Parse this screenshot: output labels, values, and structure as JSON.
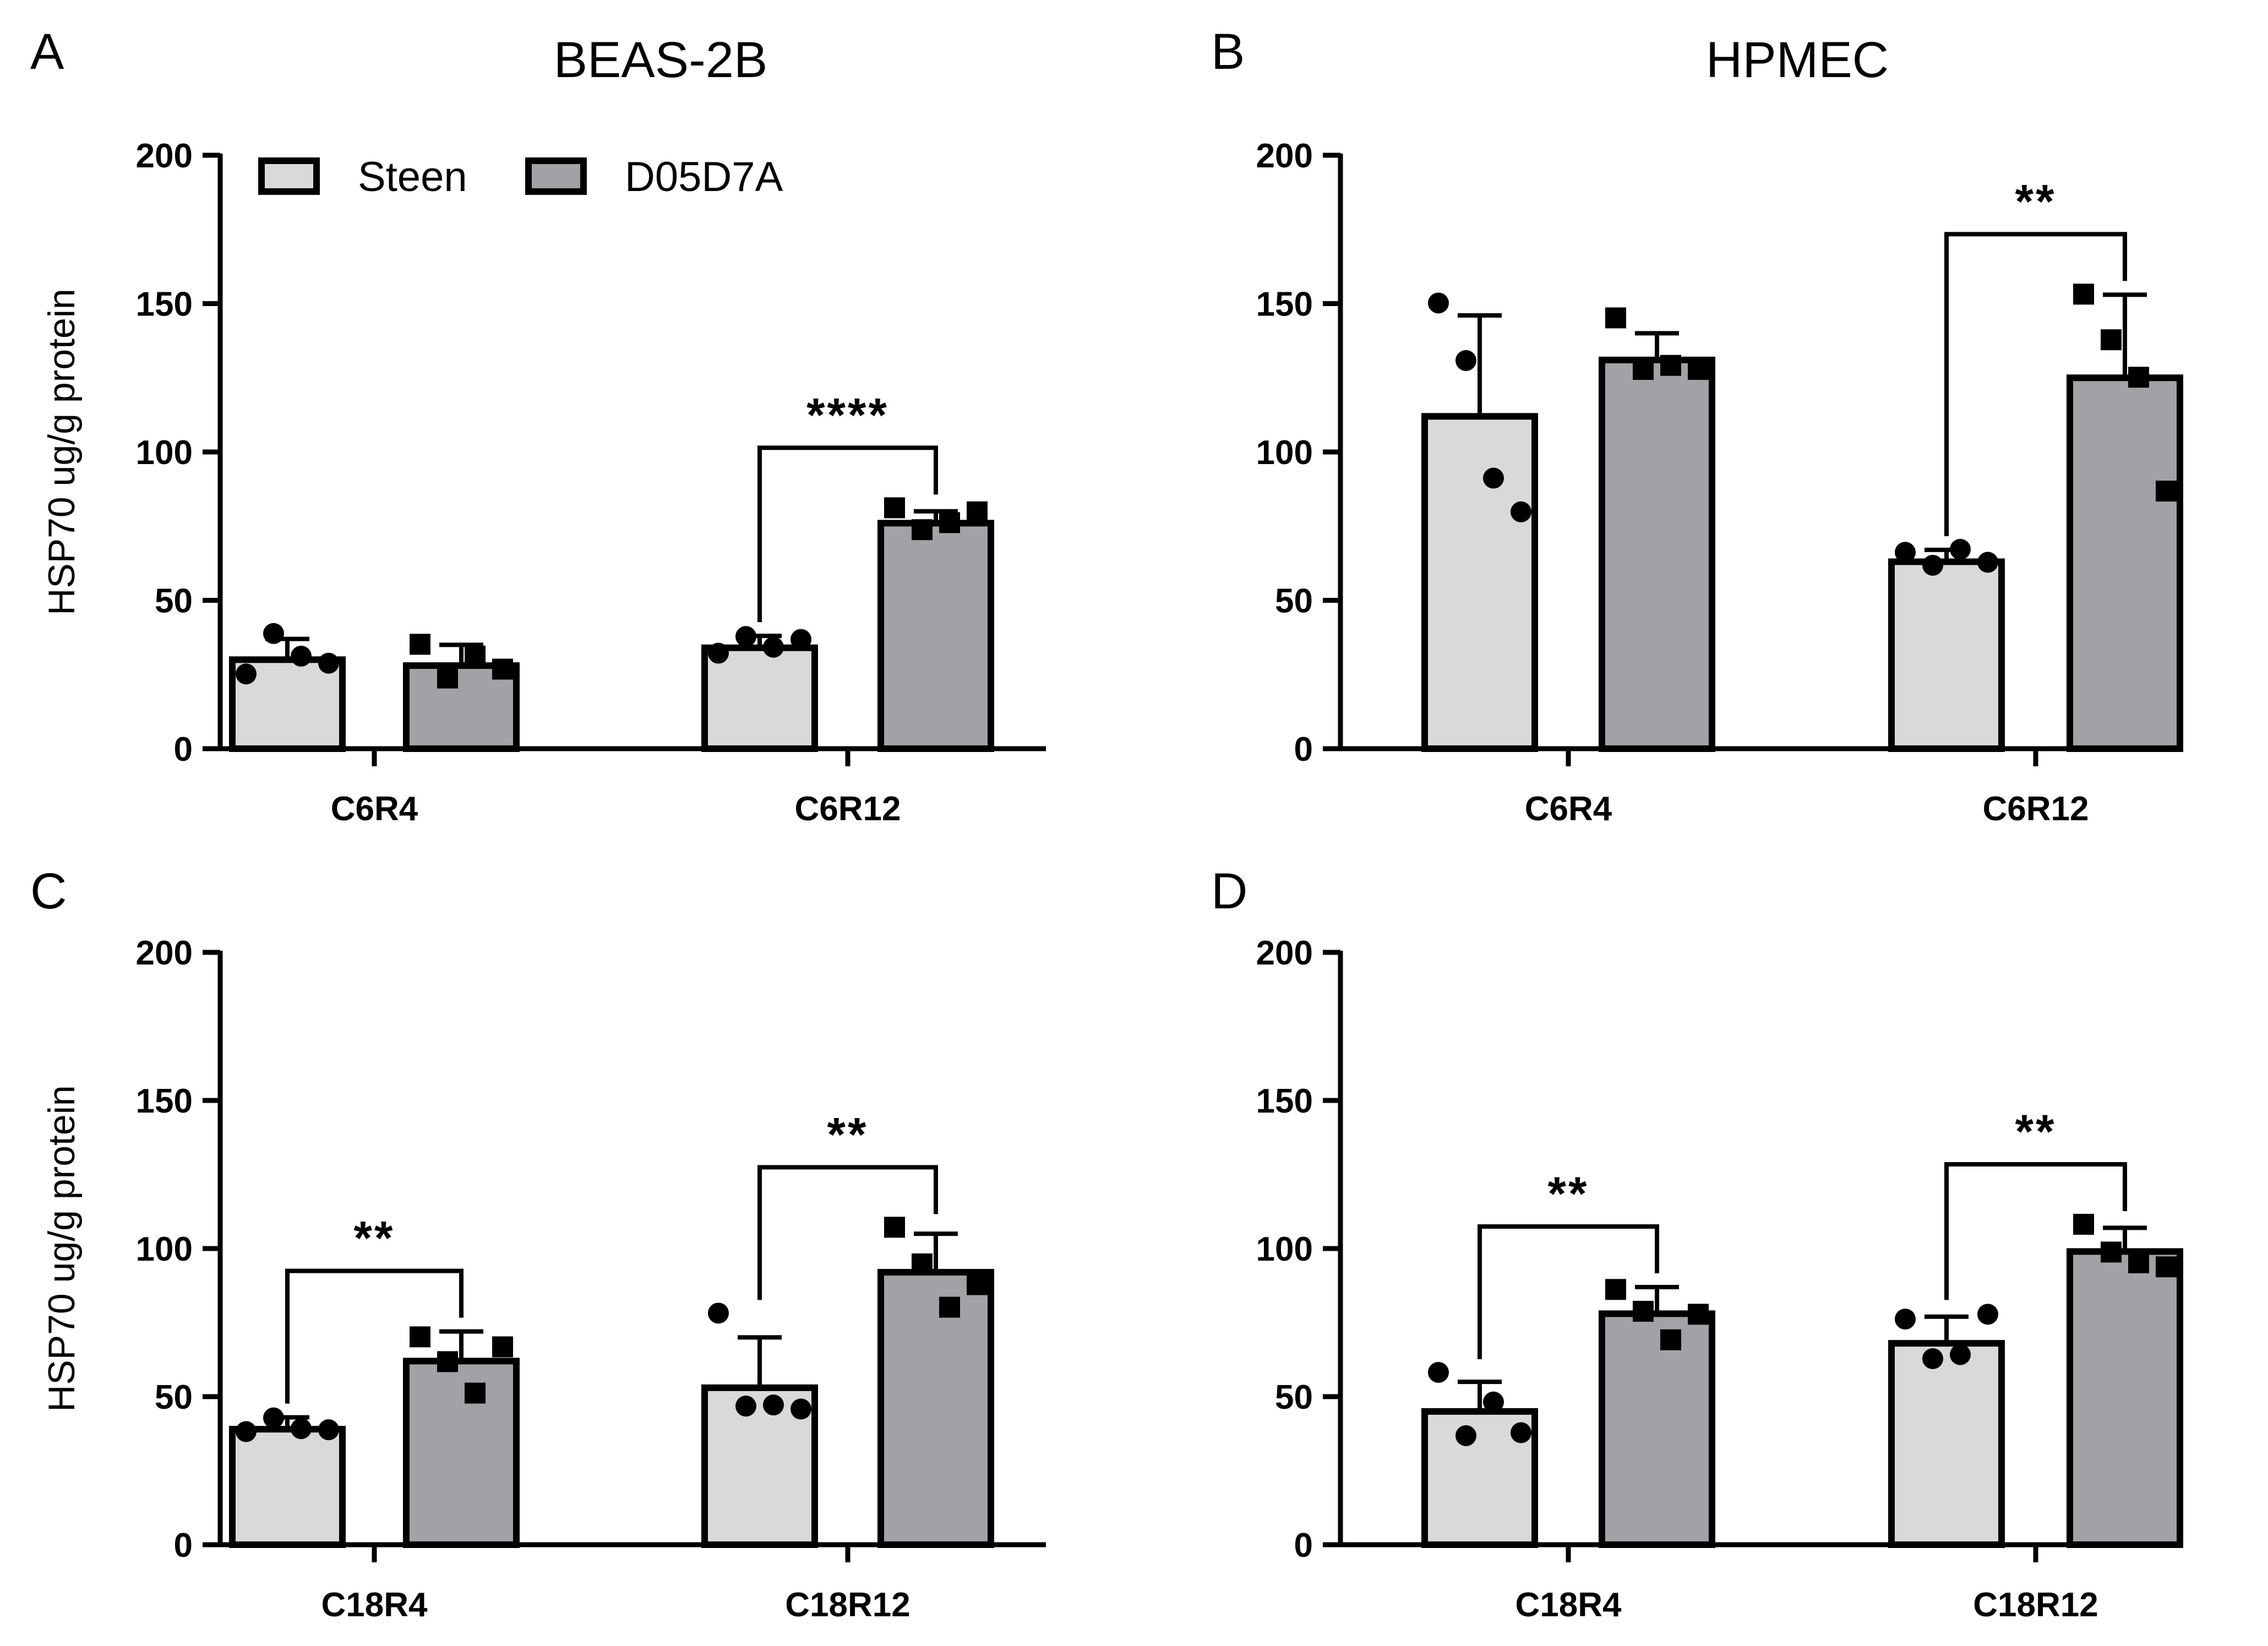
{
  "figure": {
    "legend": [
      {
        "name": "Steen",
        "color": "#d9d9d9"
      },
      {
        "name": "D05D7A",
        "color": "#a2a1a6"
      }
    ],
    "colors": {
      "steen": "#d9d9d9",
      "d05d7a": "#a2a1a6",
      "stroke": "#000000"
    }
  },
  "chart_data": [
    {
      "panel": "A",
      "title": "BEAS-2B",
      "type": "bar",
      "ylabel": "HSP70 ug/g protein",
      "ylim": [
        0,
        200
      ],
      "yticks": [
        0,
        50,
        100,
        150,
        200
      ],
      "categories": [
        "C6R4",
        "C6R12"
      ],
      "series": [
        {
          "name": "Steen",
          "values": [
            30,
            34
          ],
          "errors": [
            7,
            4
          ],
          "points": [
            [
              25,
              39,
              31,
              29
            ],
            [
              32,
              38,
              34,
              37
            ]
          ]
        },
        {
          "name": "D05D7A",
          "values": [
            28,
            76
          ],
          "errors": [
            7,
            4
          ],
          "points": [
            [
              35,
              24,
              31,
              27
            ],
            [
              81,
              74,
              76,
              80
            ]
          ]
        }
      ],
      "significance": [
        {
          "category": "C6R12",
          "label": "****"
        }
      ]
    },
    {
      "panel": "B",
      "title": "HPMEC",
      "type": "bar",
      "ylabel": "",
      "ylim": [
        0,
        200
      ],
      "yticks": [
        0,
        50,
        100,
        150,
        200
      ],
      "categories": [
        "C6R4",
        "C6R12"
      ],
      "series": [
        {
          "name": "Steen",
          "values": [
            112,
            63
          ],
          "errors": [
            34,
            4
          ],
          "points": [
            [
              150,
              131,
              91,
              80
            ],
            [
              66,
              62,
              67,
              63
            ]
          ]
        },
        {
          "name": "D05D7A",
          "values": [
            131,
            125
          ],
          "errors": [
            9,
            28
          ],
          "points": [
            [
              145,
              128,
              129,
              128
            ],
            [
              153,
              138,
              125,
              87
            ]
          ]
        }
      ],
      "significance": [
        {
          "category": "C6R12",
          "label": "**"
        }
      ]
    },
    {
      "panel": "C",
      "title": "",
      "type": "bar",
      "ylabel": "HSP70 ug/g protein",
      "ylim": [
        0,
        200
      ],
      "yticks": [
        0,
        50,
        100,
        150,
        200
      ],
      "categories": [
        "C18R4",
        "C18R12"
      ],
      "series": [
        {
          "name": "Steen",
          "values": [
            39,
            53
          ],
          "errors": [
            4,
            17
          ],
          "points": [
            [
              38,
              43,
              39,
              39
            ],
            [
              78,
              47,
              47,
              46
            ]
          ]
        },
        {
          "name": "D05D7A",
          "values": [
            62,
            92
          ],
          "errors": [
            10,
            13
          ],
          "points": [
            [
              70,
              62,
              51,
              67
            ],
            [
              107,
              95,
              80,
              88
            ]
          ]
        }
      ],
      "significance": [
        {
          "category": "C18R4",
          "label": "**"
        },
        {
          "category": "C18R12",
          "label": "**"
        }
      ]
    },
    {
      "panel": "D",
      "title": "",
      "type": "bar",
      "ylabel": "",
      "ylim": [
        0,
        200
      ],
      "yticks": [
        0,
        50,
        100,
        150,
        200
      ],
      "categories": [
        "C18R4",
        "C18R12"
      ],
      "series": [
        {
          "name": "Steen",
          "values": [
            45,
            68
          ],
          "errors": [
            10,
            9
          ],
          "points": [
            [
              58,
              37,
              48,
              38
            ],
            [
              76,
              63,
              64,
              78
            ]
          ]
        },
        {
          "name": "D05D7A",
          "values": [
            78,
            99
          ],
          "errors": [
            9,
            8
          ],
          "points": [
            [
              86,
              79,
              69,
              78
            ],
            [
              108,
              99,
              95,
              94
            ]
          ]
        }
      ],
      "significance": [
        {
          "category": "C18R4",
          "label": "**"
        },
        {
          "category": "C18R12",
          "label": "**"
        }
      ]
    }
  ]
}
